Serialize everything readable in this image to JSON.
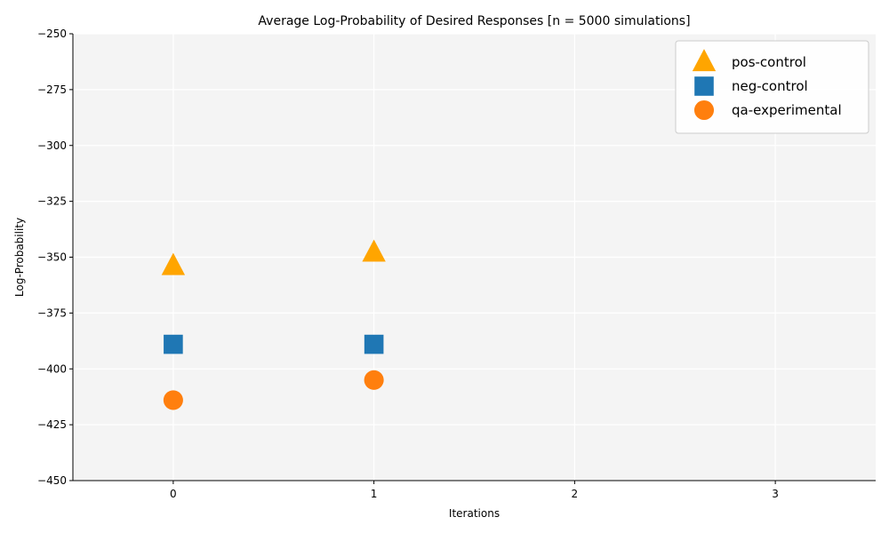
{
  "chart_data": {
    "type": "scatter",
    "title": "Average Log-Probability of Desired Responses [n = 5000 simulations]",
    "xlabel": "Iterations",
    "ylabel": "Log-Probability",
    "xlim": [
      -0.5,
      3.5
    ],
    "ylim": [
      -450,
      -250
    ],
    "xticks": [
      0,
      1,
      2,
      3
    ],
    "xtick_labels": [
      "0",
      "1",
      "2",
      "3"
    ],
    "yticks": [
      -450,
      -425,
      -400,
      -375,
      -350,
      -325,
      -300,
      -275,
      -250
    ],
    "ytick_labels": [
      "−450",
      "−425",
      "−400",
      "−375",
      "−350",
      "−325",
      "−300",
      "−275",
      "−250"
    ],
    "grid": true,
    "legend_position": "top-right",
    "series": [
      {
        "name": "pos-control",
        "marker": "triangle",
        "color": "#FFA500",
        "x": [
          0,
          1
        ],
        "y": [
          -354,
          -348
        ]
      },
      {
        "name": "neg-control",
        "marker": "square",
        "color": "#1F77B4",
        "x": [
          0,
          1
        ],
        "y": [
          -389,
          -389
        ]
      },
      {
        "name": "qa-experimental",
        "marker": "circle",
        "color": "#FF7F0E",
        "x": [
          0,
          1
        ],
        "y": [
          -414,
          -405
        ]
      }
    ]
  }
}
